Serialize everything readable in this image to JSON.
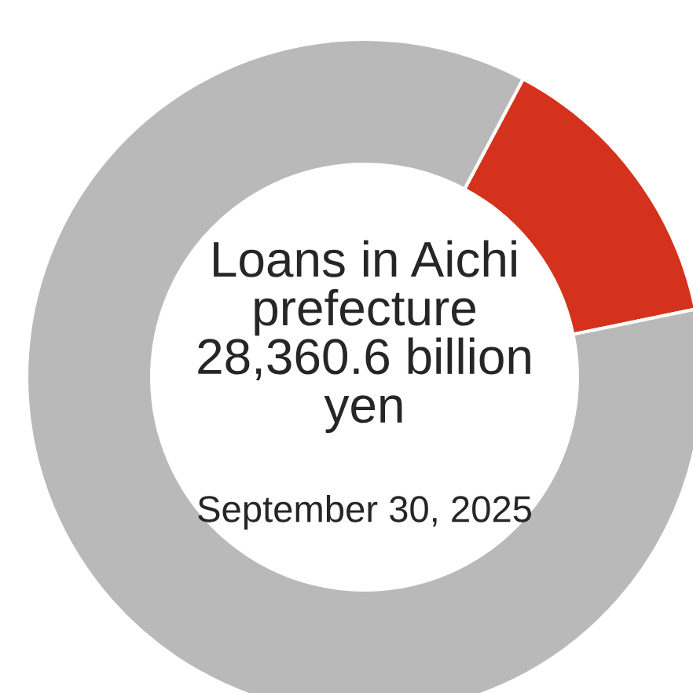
{
  "chart_data": {
    "type": "donut",
    "title": "Loans in Aichi\nprefecture\n28,360.6 billion\nyen",
    "subtitle": "September 30, 2025",
    "categories": [
      null,
      null
    ],
    "values": [
      14,
      86
    ],
    "colors": [
      "#d4321c",
      "#b9b9b9"
    ]
  }
}
